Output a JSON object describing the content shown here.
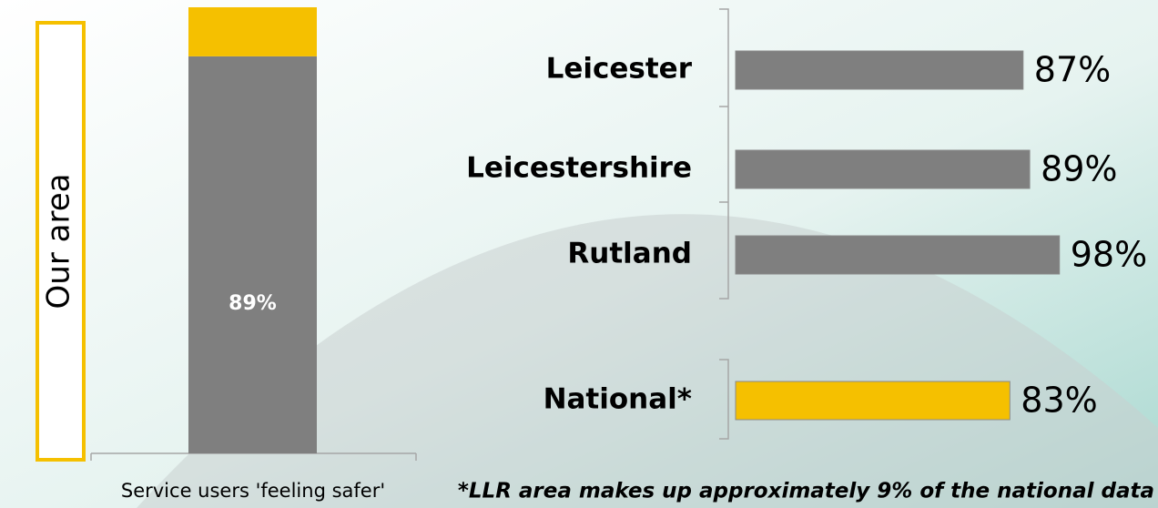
{
  "chart_data": [
    {
      "type": "stacked_bar",
      "annotation": "Our area",
      "categories": [
        "Service users 'feeling safer'"
      ],
      "series": [
        {
          "color": "#7f7f7f",
          "values": [
            89
          ],
          "value_labels": [
            "89%"
          ]
        },
        {
          "color": "#f5c000",
          "values": [
            11
          ]
        }
      ],
      "ylim": [
        0,
        100
      ]
    },
    {
      "type": "hbar",
      "categories": [
        "Leicester",
        "Leicestershire",
        "Rutland",
        "National*"
      ],
      "values": [
        87,
        89,
        98,
        83
      ],
      "value_labels": [
        "87%",
        "89%",
        "98%",
        "83%"
      ],
      "colors": [
        "#7f7f7f",
        "#7f7f7f",
        "#7f7f7f",
        "#f5c000"
      ],
      "xlim": [
        0,
        100
      ],
      "note": "*LLR area makes up approximately 9% of the national data"
    }
  ]
}
